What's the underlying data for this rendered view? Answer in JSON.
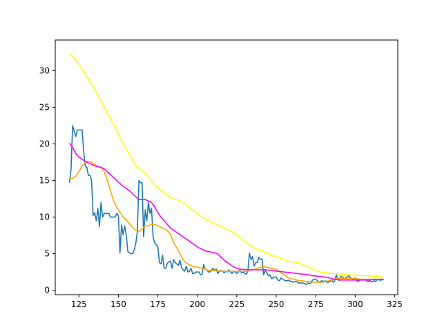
{
  "chart_data": {
    "type": "line",
    "title": "",
    "xlabel": "",
    "ylabel": "",
    "xlim": [
      110,
      327
    ],
    "ylim": [
      -0.6,
      34.2
    ],
    "xticks": [
      125,
      150,
      175,
      200,
      225,
      250,
      275,
      300,
      325
    ],
    "yticks": [
      0,
      5,
      10,
      15,
      20,
      25,
      30
    ],
    "grid": false,
    "legend": "none",
    "series": [
      {
        "color": "#1f77b4",
        "x": [
          119,
          120,
          121,
          122,
          123,
          124,
          125,
          126,
          127,
          128,
          129,
          130,
          131,
          132,
          133,
          134,
          135,
          136,
          137,
          138,
          139,
          140,
          141,
          142,
          143,
          144,
          145,
          146,
          147,
          148,
          149,
          150,
          151,
          152,
          153,
          154,
          155,
          156,
          157,
          158,
          159,
          160,
          161,
          162,
          163,
          164,
          165,
          166,
          167,
          168,
          169,
          170,
          171,
          172,
          173,
          174,
          175,
          176,
          177,
          178,
          179,
          180,
          181,
          182,
          183,
          184,
          185,
          186,
          187,
          188,
          189,
          190,
          191,
          192,
          193,
          194,
          195,
          196,
          197,
          198,
          199,
          200,
          201,
          202,
          203,
          204,
          205,
          206,
          207,
          208,
          209,
          210,
          211,
          212,
          213,
          214,
          215,
          216,
          217,
          218,
          219,
          220,
          221,
          222,
          223,
          224,
          225,
          226,
          227,
          228,
          229,
          230,
          231,
          232,
          233,
          234,
          235,
          236,
          237,
          238,
          239,
          240,
          241,
          242,
          243,
          244,
          245,
          246,
          247,
          248,
          249,
          250,
          251,
          252,
          253,
          254,
          255,
          256,
          257,
          258,
          259,
          260,
          261,
          262,
          263,
          264,
          265,
          266,
          267,
          268,
          269,
          270,
          271,
          272,
          273,
          274,
          275,
          276,
          277,
          278,
          279,
          280,
          281,
          282,
          283,
          284,
          285,
          286,
          287,
          288,
          289,
          290,
          291,
          292,
          293,
          294,
          295,
          296,
          297,
          298,
          299,
          300,
          301,
          302,
          303,
          304,
          305,
          306,
          307,
          308,
          309,
          310,
          311,
          312,
          313,
          314,
          315,
          316,
          317,
          318
        ],
        "y": [
          14.7,
          16.5,
          22.5,
          21.8,
          21.0,
          21.9,
          21.9,
          21.9,
          21.9,
          19.0,
          17.0,
          16.8,
          15.7,
          15.7,
          15.0,
          10.2,
          10.6,
          9.5,
          11.2,
          8.7,
          12.0,
          10.0,
          10.5,
          10.5,
          10.5,
          10.5,
          10.0,
          10.0,
          10.0,
          10.0,
          10.5,
          10.2,
          5.1,
          8.9,
          7.6,
          8.8,
          7.5,
          5.3,
          5.1,
          5.0,
          5.0,
          5.5,
          6.4,
          8.0,
          15.0,
          14.7,
          14.7,
          7.3,
          11.0,
          9.5,
          12.0,
          10.5,
          11.2,
          7.2,
          6.5,
          6.2,
          5.9,
          3.8,
          3.6,
          4.8,
          3.0,
          3.0,
          3.7,
          3.9,
          4.0,
          3.0,
          4.2,
          3.8,
          3.6,
          3.4,
          4.1,
          3.1,
          2.8,
          2.6,
          3.3,
          2.5,
          2.6,
          3.0,
          2.3,
          2.3,
          2.5,
          2.5,
          2.5,
          2.1,
          2.2,
          3.5,
          2.9,
          2.8,
          2.5,
          2.5,
          2.8,
          3.0,
          2.7,
          2.9,
          2.3,
          2.6,
          2.7,
          2.6,
          2.4,
          2.6,
          2.5,
          2.8,
          2.5,
          2.3,
          2.6,
          2.5,
          2.3,
          2.5,
          2.8,
          2.4,
          2.5,
          2.3,
          2.2,
          2.6,
          5.1,
          4.2,
          4.6,
          3.3,
          3.8,
          3.8,
          4.5,
          4.2,
          4.3,
          2.1,
          2.7,
          2.4,
          2.0,
          2.1,
          1.6,
          1.7,
          1.8,
          1.8,
          1.4,
          1.3,
          1.7,
          1.5,
          1.4,
          1.3,
          1.3,
          1.4,
          1.2,
          1.2,
          1.1,
          1.2,
          1.2,
          1.0,
          1.0,
          1.0,
          1.0,
          0.9,
          0.8,
          1.0,
          0.9,
          1.0,
          1.4,
          1.5,
          1.5,
          1.3,
          1.1,
          1.2,
          1.3,
          1.2,
          1.3,
          1.1,
          1.1,
          1.2,
          1.4,
          1.1,
          1.3,
          2.1,
          1.5,
          1.3,
          1.9,
          1.8,
          1.6,
          1.7,
          1.8,
          2.0,
          1.7,
          1.6,
          1.5,
          1.7,
          1.3,
          1.2,
          1.4,
          1.5,
          1.4,
          1.5,
          1.4,
          1.2,
          1.3,
          1.2,
          1.2,
          1.3,
          1.2,
          1.5,
          1.4,
          1.4,
          1.4,
          1.5
        ]
      },
      {
        "color": "#ffa500",
        "x": [
          119,
          121,
          123,
          125,
          127,
          129,
          131,
          133,
          135,
          137,
          139,
          141,
          143,
          145,
          147,
          149,
          151,
          153,
          155,
          157,
          159,
          161,
          163,
          165,
          167,
          169,
          171,
          173,
          175,
          177,
          179,
          181,
          183,
          185,
          187,
          189,
          191,
          193,
          195,
          197,
          199,
          201,
          203,
          205,
          207,
          209,
          211,
          213,
          215,
          217,
          219,
          221,
          223,
          225,
          227,
          229,
          231,
          233,
          235,
          237,
          239,
          241,
          243,
          245,
          247,
          249,
          251,
          253,
          255,
          257,
          259,
          261,
          263,
          265,
          267,
          269,
          271,
          273,
          275,
          277,
          279,
          281,
          283,
          285,
          287,
          289,
          291,
          293,
          295,
          297,
          299,
          301,
          303,
          305,
          307,
          309,
          311,
          313,
          315,
          317,
          318
        ],
        "y": [
          15.2,
          15.3,
          15.6,
          16.2,
          17.0,
          17.5,
          17.6,
          17.5,
          17.2,
          16.9,
          16.8,
          16.2,
          15.0,
          13.6,
          12.2,
          11.3,
          10.7,
          10.0,
          9.6,
          9.1,
          8.6,
          8.2,
          8.0,
          8.4,
          8.8,
          8.8,
          9.0,
          9.0,
          8.8,
          8.6,
          8.4,
          8.2,
          7.6,
          6.5,
          5.8,
          5.0,
          4.2,
          3.7,
          3.5,
          3.3,
          3.2,
          3.1,
          3.0,
          2.9,
          2.7,
          2.7,
          2.7,
          2.7,
          2.6,
          2.6,
          2.6,
          2.6,
          2.6,
          2.6,
          2.6,
          2.6,
          2.6,
          2.7,
          2.8,
          2.9,
          3.1,
          3.2,
          3.2,
          3.1,
          3.0,
          2.9,
          2.7,
          2.4,
          2.1,
          1.8,
          1.6,
          1.5,
          1.4,
          1.3,
          1.3,
          1.2,
          1.2,
          1.1,
          1.1,
          1.1,
          1.1,
          1.2,
          1.3,
          1.4,
          1.5,
          1.6,
          1.6,
          1.6,
          1.6,
          1.6,
          1.6,
          1.6,
          1.5,
          1.5,
          1.5,
          1.5,
          1.5,
          1.5,
          1.5,
          1.5,
          1.5
        ]
      },
      {
        "color": "#ffff00",
        "x": [
          119,
          122,
          125,
          128,
          131,
          134,
          137,
          140,
          143,
          146,
          149,
          152,
          155,
          158,
          161,
          164,
          167,
          170,
          173,
          176,
          179,
          182,
          185,
          188,
          191,
          194,
          197,
          200,
          203,
          206,
          209,
          212,
          215,
          218,
          221,
          224,
          227,
          230,
          233,
          236,
          239,
          242,
          245,
          248,
          251,
          254,
          257,
          260,
          263,
          266,
          269,
          272,
          275,
          278,
          281,
          284,
          287,
          290,
          293,
          296,
          299,
          302,
          305,
          308,
          311,
          314,
          317,
          318
        ],
        "y": [
          32.3,
          31.7,
          30.9,
          29.9,
          28.9,
          27.8,
          26.7,
          25.4,
          24.2,
          23.0,
          21.8,
          20.5,
          19.3,
          18.2,
          17.0,
          16.5,
          16.0,
          15.2,
          14.5,
          13.8,
          13.3,
          12.8,
          12.5,
          12.3,
          12.0,
          11.5,
          11.0,
          10.5,
          10.0,
          9.6,
          9.3,
          9.0,
          8.7,
          8.4,
          8.1,
          7.7,
          7.2,
          6.7,
          6.2,
          5.8,
          5.5,
          5.3,
          5.0,
          4.7,
          4.5,
          4.3,
          4.0,
          3.9,
          3.8,
          3.6,
          3.3,
          3.0,
          2.7,
          2.5,
          2.4,
          2.3,
          2.3,
          2.2,
          2.2,
          2.1,
          2.1,
          2.0,
          2.0,
          2.0,
          1.9,
          1.9,
          1.8,
          1.8
        ]
      },
      {
        "color": "#ff00ff",
        "x": [
          119,
          121,
          123,
          125,
          127,
          129,
          131,
          133,
          135,
          137,
          139,
          141,
          143,
          145,
          147,
          149,
          151,
          153,
          155,
          157,
          159,
          161,
          163,
          165,
          167,
          169,
          171,
          173,
          175,
          177,
          179,
          181,
          183,
          185,
          187,
          189,
          191,
          193,
          195,
          197,
          199,
          201,
          203,
          205,
          207,
          209,
          211,
          213,
          215,
          217,
          219,
          221,
          223,
          225,
          227,
          229,
          231,
          233,
          235,
          237,
          239,
          241,
          243,
          245,
          247,
          249,
          251,
          253,
          255,
          257,
          259,
          261,
          263,
          265,
          267,
          269,
          271,
          273,
          275,
          277,
          279,
          281,
          283,
          285,
          287,
          289,
          291,
          293,
          295,
          297,
          299,
          301,
          303,
          305,
          307,
          309,
          311,
          313,
          315,
          317,
          318
        ],
        "y": [
          20.1,
          19.5,
          18.7,
          18.2,
          17.9,
          17.6,
          17.4,
          17.2,
          17.0,
          16.9,
          16.8,
          16.6,
          16.2,
          15.8,
          15.4,
          15.0,
          14.6,
          14.2,
          13.9,
          13.6,
          13.2,
          12.8,
          12.4,
          12.4,
          12.4,
          12.2,
          12.0,
          11.4,
          10.6,
          10.0,
          9.5,
          9.0,
          8.5,
          8.2,
          7.9,
          7.6,
          7.3,
          7.0,
          6.7,
          6.4,
          6.1,
          5.8,
          5.6,
          5.4,
          5.3,
          5.2,
          5.1,
          5.0,
          4.5,
          4.1,
          3.8,
          3.5,
          3.2,
          3.0,
          2.9,
          2.85,
          2.8,
          2.8,
          2.8,
          2.8,
          2.8,
          2.8,
          2.8,
          2.75,
          2.7,
          2.65,
          2.6,
          2.55,
          2.5,
          2.45,
          2.4,
          2.35,
          2.3,
          2.25,
          2.2,
          2.15,
          2.1,
          2.0,
          1.95,
          1.9,
          1.85,
          1.8,
          1.75,
          1.6,
          1.5,
          1.45,
          1.4,
          1.4,
          1.4,
          1.4,
          1.4,
          1.4,
          1.4,
          1.4,
          1.4,
          1.4,
          1.45,
          1.45,
          1.45,
          1.5,
          1.5
        ]
      }
    ]
  }
}
